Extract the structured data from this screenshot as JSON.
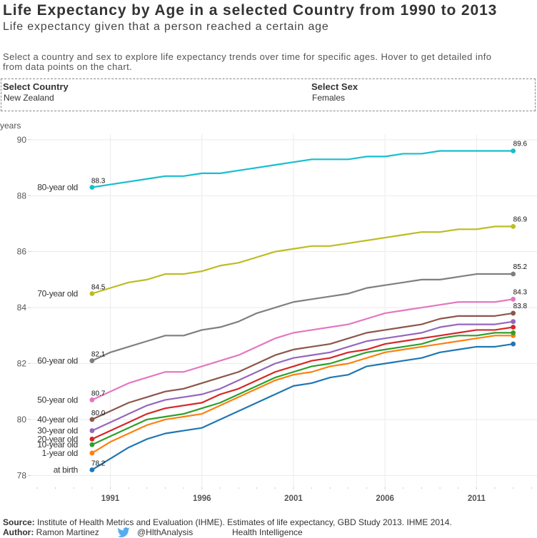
{
  "header": {
    "title": "Life Expectancy by Age in a selected Country from 1990 to 2013",
    "subtitle": "Life expectancy given that a person reached a certain age",
    "description_line1": "Select a country and sex to explore life expectancy trends over time for specific ages. Hover to get detailed info",
    "description_line2": "from data points on the chart."
  },
  "filters": {
    "country": {
      "label": "Select Country",
      "value": "New Zealand"
    },
    "sex": {
      "label": "Select Sex",
      "value": "Females"
    }
  },
  "chart_data": {
    "type": "line",
    "title": "",
    "xlabel": "",
    "ylabel": "years",
    "xlim": [
      1986.65,
      2014.3
    ],
    "ylim": [
      77.6,
      90.2
    ],
    "grid": true,
    "legend": "inline-left",
    "x": [
      1990,
      1991,
      1992,
      1993,
      1994,
      1995,
      1996,
      1997,
      1998,
      1999,
      2000,
      2001,
      2002,
      2003,
      2004,
      2005,
      2006,
      2007,
      2008,
      2009,
      2010,
      2011,
      2012,
      2013
    ],
    "x_ticks": [
      1991,
      1996,
      2001,
      2006,
      2011
    ],
    "y_ticks": [
      78,
      80,
      82,
      84,
      86,
      88,
      90
    ],
    "series": [
      {
        "name": "80-year old",
        "color": "#17becf",
        "label_start": true,
        "label_end": true,
        "values": [
          88.3,
          88.4,
          88.5,
          88.6,
          88.7,
          88.7,
          88.8,
          88.8,
          88.9,
          89.0,
          89.1,
          89.2,
          89.3,
          89.3,
          89.3,
          89.4,
          89.4,
          89.5,
          89.5,
          89.6,
          89.6,
          89.6,
          89.6,
          89.6
        ]
      },
      {
        "name": "70-year old",
        "color": "#bcbd22",
        "label_start": true,
        "label_end": true,
        "values": [
          84.5,
          84.7,
          84.9,
          85.0,
          85.2,
          85.2,
          85.3,
          85.5,
          85.6,
          85.8,
          86.0,
          86.1,
          86.2,
          86.2,
          86.3,
          86.4,
          86.5,
          86.6,
          86.7,
          86.7,
          86.8,
          86.8,
          86.9,
          86.9
        ]
      },
      {
        "name": "60-year old",
        "color": "#7f7f7f",
        "label_start": true,
        "label_end": true,
        "values": [
          82.1,
          82.4,
          82.6,
          82.8,
          83.0,
          83.0,
          83.2,
          83.3,
          83.5,
          83.8,
          84.0,
          84.2,
          84.3,
          84.4,
          84.5,
          84.7,
          84.8,
          84.9,
          85.0,
          85.0,
          85.1,
          85.2,
          85.2,
          85.2
        ]
      },
      {
        "name": "50-year old",
        "color": "#e377c2",
        "label_start": true,
        "label_end": true,
        "values": [
          80.7,
          81.0,
          81.3,
          81.5,
          81.7,
          81.7,
          81.9,
          82.1,
          82.3,
          82.6,
          82.9,
          83.1,
          83.2,
          83.3,
          83.4,
          83.6,
          83.8,
          83.9,
          84.0,
          84.1,
          84.2,
          84.2,
          84.2,
          84.3
        ]
      },
      {
        "name": "40-year old",
        "color": "#8c564b",
        "label_start": true,
        "label_end": true,
        "values": [
          80.0,
          80.3,
          80.6,
          80.8,
          81.0,
          81.1,
          81.3,
          81.5,
          81.7,
          82.0,
          82.3,
          82.5,
          82.6,
          82.7,
          82.9,
          83.1,
          83.2,
          83.3,
          83.4,
          83.6,
          83.7,
          83.7,
          83.7,
          83.8
        ]
      },
      {
        "name": "30-year old",
        "color": "#9467bd",
        "label_start": false,
        "label_end": false,
        "values": [
          79.6,
          79.9,
          80.2,
          80.5,
          80.7,
          80.8,
          80.9,
          81.1,
          81.4,
          81.7,
          82.0,
          82.2,
          82.3,
          82.4,
          82.6,
          82.8,
          82.9,
          83.0,
          83.1,
          83.3,
          83.4,
          83.4,
          83.4,
          83.5
        ]
      },
      {
        "name": "20-year old",
        "color": "#d62728",
        "label_start": false,
        "label_end": false,
        "values": [
          79.3,
          79.6,
          79.9,
          80.2,
          80.4,
          80.5,
          80.6,
          80.9,
          81.1,
          81.4,
          81.7,
          81.9,
          82.1,
          82.2,
          82.4,
          82.5,
          82.7,
          82.8,
          82.9,
          83.0,
          83.1,
          83.2,
          83.2,
          83.3
        ]
      },
      {
        "name": "10-year old",
        "color": "#2ca02c",
        "label_start": false,
        "label_end": false,
        "values": [
          79.1,
          79.4,
          79.7,
          80.0,
          80.1,
          80.2,
          80.4,
          80.6,
          80.9,
          81.2,
          81.5,
          81.7,
          81.9,
          82.0,
          82.2,
          82.4,
          82.5,
          82.6,
          82.7,
          82.9,
          83.0,
          83.0,
          83.1,
          83.1
        ]
      },
      {
        "name": "1-year old",
        "color": "#ff7f0e",
        "label_start": false,
        "label_end": false,
        "values": [
          78.8,
          79.2,
          79.5,
          79.8,
          80.0,
          80.1,
          80.2,
          80.5,
          80.8,
          81.1,
          81.4,
          81.6,
          81.7,
          81.9,
          82.0,
          82.2,
          82.4,
          82.5,
          82.6,
          82.7,
          82.8,
          82.9,
          83.0,
          83.0
        ]
      },
      {
        "name": "at birth",
        "color": "#1f77b4",
        "label_start": true,
        "label_end": false,
        "values": [
          78.2,
          78.6,
          79.0,
          79.3,
          79.5,
          79.6,
          79.7,
          80.0,
          80.3,
          80.6,
          80.9,
          81.2,
          81.3,
          81.5,
          81.6,
          81.9,
          82.0,
          82.1,
          82.2,
          82.4,
          82.5,
          82.6,
          82.6,
          82.7
        ]
      }
    ]
  },
  "footer": {
    "source_label": "Source:",
    "source_text": "Institute of Health Metrics and Evaluation (IHME). Estimates of life expectancy, GBD Study 2013. IHME 2014.",
    "author_label": "Author:",
    "author_name": "Ramon Martinez",
    "twitter_icon": "twitter-bird-icon",
    "twitter_handle": "@HlthAnalysis",
    "org_name": "Health Intelligence"
  },
  "colors": {
    "twitter_blue": "#55acee",
    "gridline": "#ebebeb"
  }
}
